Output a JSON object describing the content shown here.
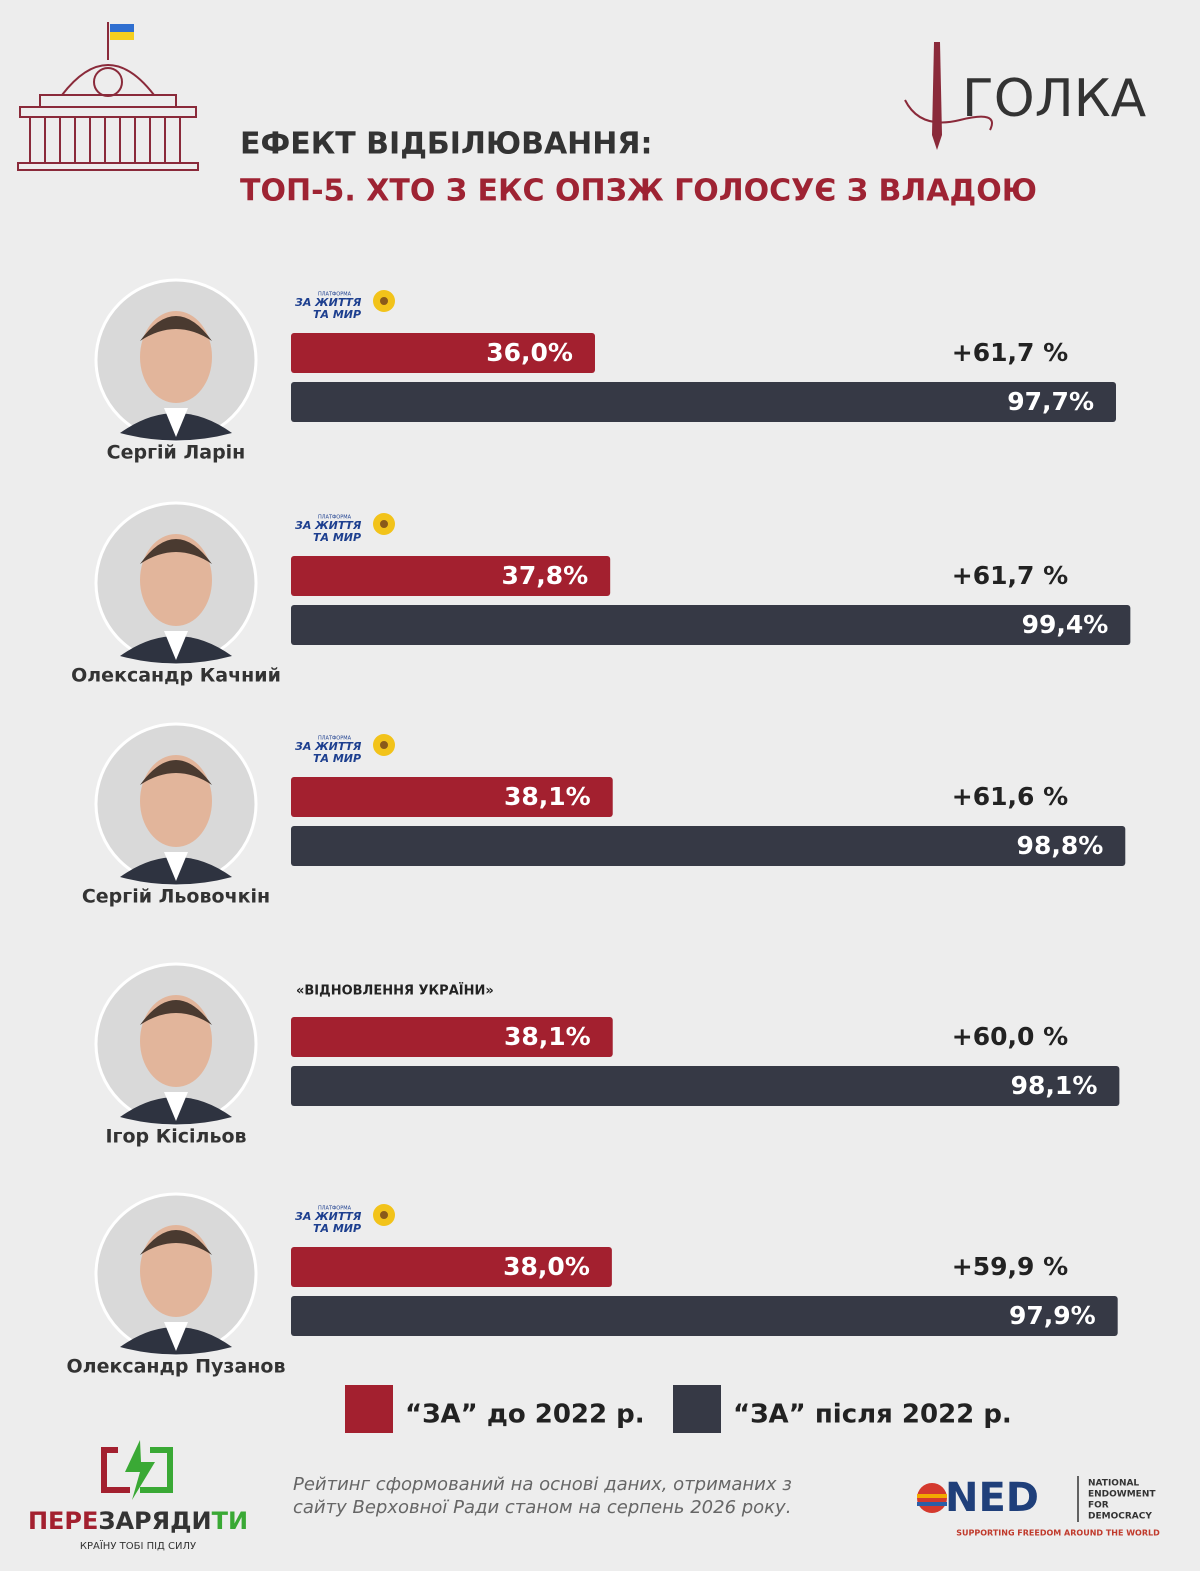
{
  "header": {
    "brand": "ГОЛКА"
  },
  "chart_data": {
    "type": "bar",
    "orientation": "horizontal",
    "title": "ЕФЕКТ ВІДБІЛЮВАННЯ:",
    "subtitle": "ТОП-5. ХТО З ЕКС ОПЗЖ ГОЛОСУЄ З ВЛАДОЮ",
    "categories": [
      "Сергій Ларін",
      "Олександр Качний",
      "Сергій Льовочкін",
      "Ігор Кісільов",
      "Олександр Пузанов"
    ],
    "parties": [
      {
        "logo": true,
        "lines": [
          "ПЛАТФОРМА",
          "ЗА ЖИТТЯ",
          "ТА МИР"
        ]
      },
      {
        "logo": true,
        "lines": [
          "ПЛАТФОРМА",
          "ЗА ЖИТТЯ",
          "ТА МИР"
        ]
      },
      {
        "logo": true,
        "lines": [
          "ПЛАТФОРМА",
          "ЗА ЖИТТЯ",
          "ТА МИР"
        ]
      },
      {
        "logo": false,
        "lines": [
          "«ВІДНОВЛЕННЯ УКРАЇНИ»"
        ]
      },
      {
        "logo": true,
        "lines": [
          "ПЛАТФОРМА",
          "ЗА ЖИТТЯ",
          "ТА МИР"
        ]
      }
    ],
    "series": [
      {
        "name": "“ЗА” до 2022 р.",
        "color": "#a3202f",
        "values": [
          36.0,
          37.8,
          38.1,
          38.1,
          38.0
        ],
        "value_labels": [
          "36,0%",
          "37,8%",
          "38,1%",
          "38,1%",
          "38,0%"
        ]
      },
      {
        "name": "“ЗА” після 2022 р.",
        "color": "#363945",
        "values": [
          97.7,
          99.4,
          98.8,
          98.1,
          97.9
        ],
        "value_labels": [
          "97,7%",
          "99,4%",
          "98,8%",
          "98,1%",
          "97,9%"
        ]
      }
    ],
    "annotations": [
      "+61,7 %",
      "+61,7 %",
      "+61,6 %",
      "+60,0 %",
      "+59,9 %"
    ]
  },
  "footer": {
    "brand_parts": [
      "ПЕРЕ",
      "ЗАРЯДИ",
      "ТИ"
    ],
    "slogan": "КРАЇНУ ТОБІ ПІД СИЛУ",
    "note": [
      "Рейтинг сформований на основі даних, отриманих з",
      "сайту Верховної Ради станом на серпень 2026 року."
    ],
    "ned": "NED",
    "ned_lines": [
      "NATIONAL",
      "ENDOWMENT",
      "FOR",
      "DEMOCRACY"
    ],
    "ned_tagline": "SUPPORTING FREEDOM AROUND THE WORLD"
  }
}
